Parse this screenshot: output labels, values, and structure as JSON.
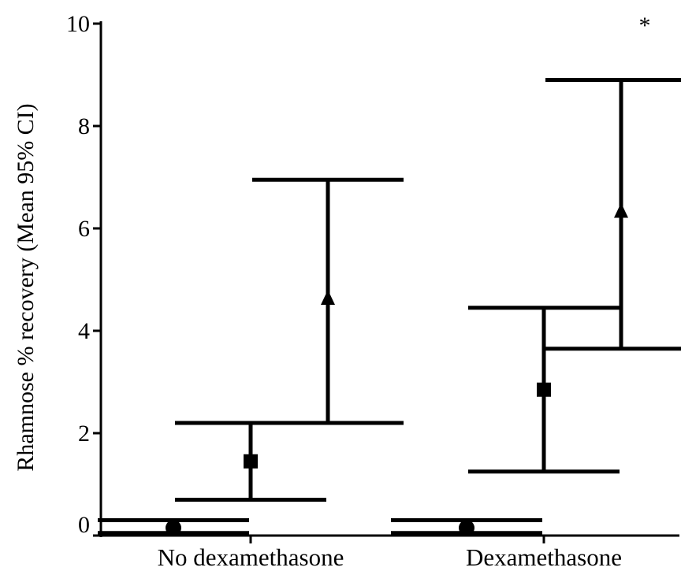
{
  "chart_data": {
    "type": "scatter",
    "title": "",
    "xlabel": "",
    "ylabel": "Rhamnose % recovery (Mean 95% CI)",
    "ylim": [
      0,
      10
    ],
    "yticks": [
      0,
      2,
      4,
      6,
      8,
      10
    ],
    "categories": [
      "No dexamethasone",
      "Dexamethasone"
    ],
    "grid": false,
    "legend": "none",
    "series": [
      {
        "marker": "circle",
        "points": [
          {
            "category": "No dexamethasone",
            "mean": 0.15,
            "lower": 0.05,
            "upper": 0.3
          },
          {
            "category": "Dexamethasone",
            "mean": 0.15,
            "lower": 0.05,
            "upper": 0.3
          }
        ]
      },
      {
        "marker": "square",
        "points": [
          {
            "category": "No dexamethasone",
            "mean": 1.45,
            "lower": 0.7,
            "upper": 2.2
          },
          {
            "category": "Dexamethasone",
            "mean": 2.85,
            "lower": 1.25,
            "upper": 4.45
          }
        ]
      },
      {
        "marker": "triangle",
        "points": [
          {
            "category": "No dexamethasone",
            "mean": 4.6,
            "lower": 2.2,
            "upper": 6.95
          },
          {
            "category": "Dexamethasone",
            "mean": 6.3,
            "lower": 3.65,
            "upper": 8.9
          }
        ]
      }
    ],
    "annotations": [
      {
        "text": "*",
        "category": "Dexamethasone",
        "series_index": 2,
        "y": 10
      }
    ],
    "colors": {
      "ink": "#000000",
      "background": "#ffffff"
    }
  }
}
